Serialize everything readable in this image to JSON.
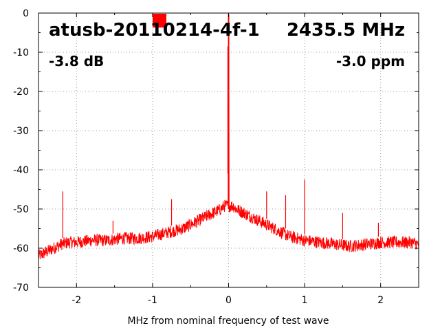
{
  "chart_data": {
    "type": "line",
    "title": "",
    "xlabel": "MHz from nominal frequency of test wave",
    "ylabel": "",
    "xlim": [
      -2.5,
      2.5
    ],
    "ylim": [
      -70,
      0
    ],
    "grid": true,
    "x_ticks": [
      -2,
      -1,
      0,
      1,
      2
    ],
    "x_tick_labels": [
      "-2",
      "-1",
      "0",
      "1",
      "2"
    ],
    "y_ticks": [
      0,
      -10,
      -20,
      -30,
      -40,
      -50,
      -60,
      -70
    ],
    "y_tick_labels": [
      "0",
      "-10",
      "-20",
      "-30",
      "-40",
      "-50",
      "-60",
      "-70"
    ],
    "annotations": {
      "device": "atusb-20110214-4f-1",
      "frequency": "2435.5 MHz",
      "level": "-3.8 dB",
      "offset": "-3.0 ppm"
    },
    "marker": {
      "color": "#ff0000",
      "shape": "square"
    },
    "series": [
      {
        "color": "#ff0000",
        "x": [
          -2.5,
          -2.4,
          -2.3,
          -2.2,
          -2.1,
          -2.0,
          -1.8,
          -1.6,
          -1.4,
          -1.2,
          -1.0,
          -0.8,
          -0.6,
          -0.4,
          -0.2,
          -0.1,
          -0.05,
          0.0,
          0.05,
          0.1,
          0.2,
          0.4,
          0.6,
          0.8,
          1.0,
          1.2,
          1.4,
          1.6,
          1.8,
          2.0,
          2.2,
          2.4,
          2.5
        ],
        "y": [
          -62,
          -61,
          -60,
          -59,
          -58.5,
          -58.5,
          -58,
          -58,
          -57.5,
          -57.5,
          -57,
          -56,
          -55,
          -53,
          -51,
          -50,
          -49,
          -0.3,
          -49,
          -50,
          -51,
          -53,
          -55,
          -57,
          -58,
          -58.5,
          -59,
          -59.5,
          -59,
          -58.5,
          -58.5,
          -58.5,
          -59
        ]
      }
    ],
    "spurs": [
      {
        "x": -2.18,
        "y": -45.5
      },
      {
        "x": -1.52,
        "y": -53
      },
      {
        "x": -0.75,
        "y": -47.5
      },
      {
        "x": -0.5,
        "y": -52.5
      },
      {
        "x": -0.01,
        "y": -41
      },
      {
        "x": 0.5,
        "y": -45.5
      },
      {
        "x": 0.75,
        "y": -46.5
      },
      {
        "x": 1.0,
        "y": -42.5
      },
      {
        "x": 1.5,
        "y": -51
      },
      {
        "x": 1.97,
        "y": -53.5
      }
    ]
  }
}
